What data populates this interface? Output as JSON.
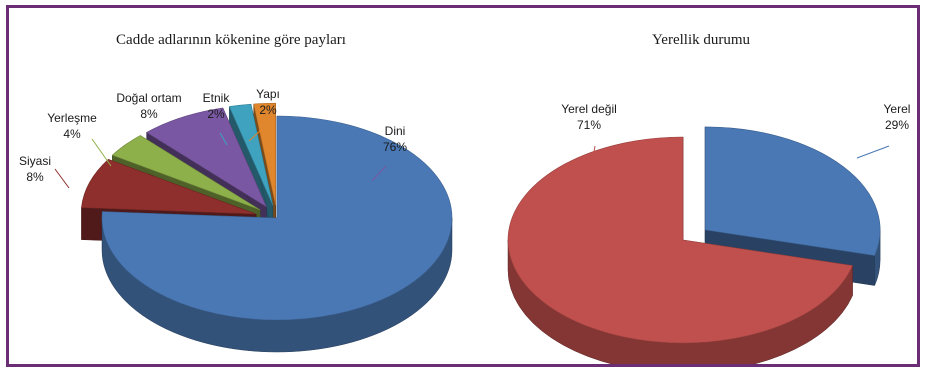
{
  "chart_data": [
    {
      "type": "pie",
      "title": "Cadde adlarının kökenine göre payları",
      "categories": [
        "Dini",
        "Siyasi",
        "Yerleşme",
        "Doğal ortam",
        "Etnik",
        "Yapı"
      ],
      "values": [
        76,
        8,
        4,
        8,
        2,
        2
      ],
      "value_labels": [
        "76%",
        "8%",
        "4%",
        "8%",
        "2%",
        "2%"
      ],
      "colors": [
        "#4a78b4",
        "#8f2f2d",
        "#8db04a",
        "#7a57a2",
        "#3fa2bf",
        "#e0872e"
      ],
      "style": "3d-exploded"
    },
    {
      "type": "pie",
      "title": "Yerellik durumu",
      "categories": [
        "Yerel",
        "Yerel değil"
      ],
      "values": [
        29,
        71
      ],
      "value_labels": [
        "29%",
        "71%"
      ],
      "colors": [
        "#4a78b4",
        "#c0504d"
      ],
      "style": "3d-exploded"
    }
  ]
}
